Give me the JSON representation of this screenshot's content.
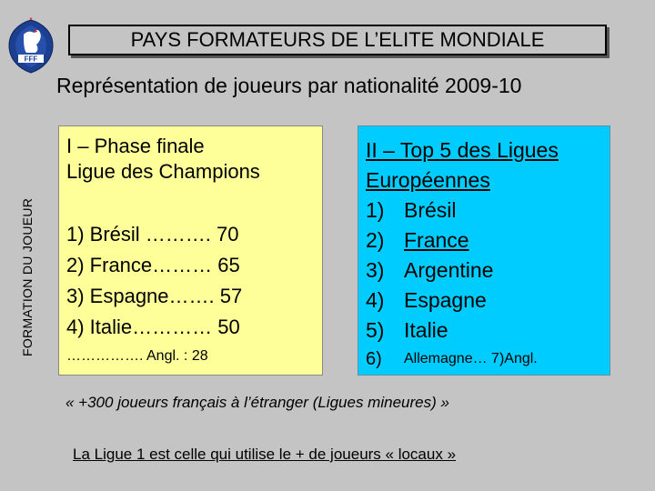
{
  "logo": {
    "icon": "fff-rooster-crest-icon",
    "text": "FFF",
    "colors": {
      "primary": "#1d3f8f",
      "accent": "#e2231a"
    }
  },
  "side_label": "FORMATION DU JOUEUR",
  "title": "PAYS FORMATEURS DE L’ELITE MONDIALE",
  "subtitle": "Représentation de joueurs par nationalité 2009-10",
  "panel_left": {
    "heading_line1": "I – Phase finale",
    "heading_line2": "Ligue des Champions",
    "items": [
      "1) Brésil ………. 70",
      "2) France……… 65",
      "3) Espagne……. 57",
      "4) Italie………… 50"
    ],
    "extra": "……………. Angl. : 28",
    "background": "#ffff99"
  },
  "panel_right": {
    "heading_line1": "II – Top 5 des Ligues",
    "heading_line2": "Européennes",
    "items": [
      {
        "num": "1)",
        "label": "Brésil"
      },
      {
        "num": "2)",
        "label": "France"
      },
      {
        "num": "3)",
        "label": "Argentine"
      },
      {
        "num": "4)",
        "label": "Espagne"
      },
      {
        "num": "5)",
        "label": "Italie"
      },
      {
        "num": "6)",
        "label": "Allemagne… 7)Angl."
      }
    ],
    "background": "#00ccff"
  },
  "quote": "« +300 joueurs français à l’étranger (Ligues mineures) »",
  "footer": "La Ligue 1 est celle qui utilise le + de joueurs « locaux »"
}
